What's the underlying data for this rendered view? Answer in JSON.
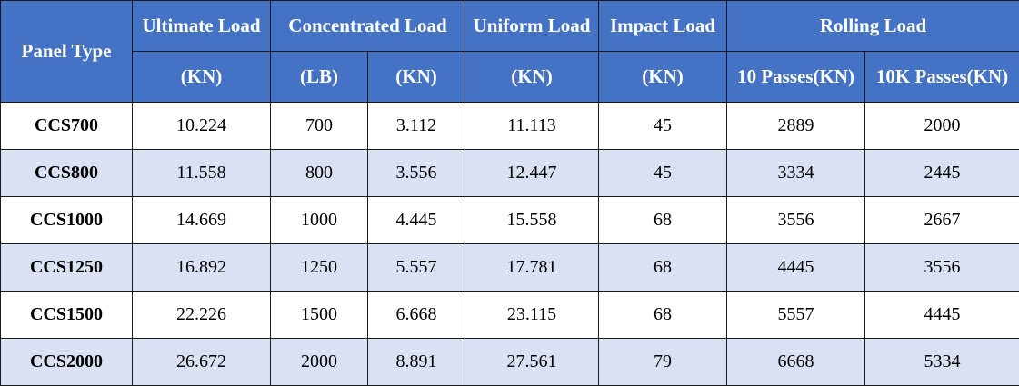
{
  "table": {
    "headers": {
      "panel_type": "Panel Type",
      "ultimate_load": "Ultimate Load",
      "concentrated_load": "Concentrated Load",
      "uniform_load": "Uniform Load",
      "impact_load": "Impact Load",
      "rolling_load": "Rolling Load"
    },
    "units": {
      "ultimate": "(KN)",
      "concentrated_lb": "(LB)",
      "concentrated_kn": "(KN)",
      "uniform": "(KN)",
      "impact": "(KN)",
      "rolling_10": "10 Passes(KN)",
      "rolling_10k": "10K Passes(KN)"
    },
    "rows": [
      {
        "type": "CCS700",
        "ultimate": "10.224",
        "conc_lb": "700",
        "conc_kn": "3.112",
        "uniform": "11.113",
        "impact": "45",
        "roll_10": "2889",
        "roll_10k": "2000"
      },
      {
        "type": "CCS800",
        "ultimate": "11.558",
        "conc_lb": "800",
        "conc_kn": "3.556",
        "uniform": "12.447",
        "impact": "45",
        "roll_10": "3334",
        "roll_10k": "2445"
      },
      {
        "type": "CCS1000",
        "ultimate": "14.669",
        "conc_lb": "1000",
        "conc_kn": "4.445",
        "uniform": "15.558",
        "impact": "68",
        "roll_10": "3556",
        "roll_10k": "2667"
      },
      {
        "type": "CCS1250",
        "ultimate": "16.892",
        "conc_lb": "1250",
        "conc_kn": "5.557",
        "uniform": "17.781",
        "impact": "68",
        "roll_10": "4445",
        "roll_10k": "3556"
      },
      {
        "type": "CCS1500",
        "ultimate": "22.226",
        "conc_lb": "1500",
        "conc_kn": "6.668",
        "uniform": "23.115",
        "impact": "68",
        "roll_10": "5557",
        "roll_10k": "4445"
      },
      {
        "type": "CCS2000",
        "ultimate": "26.672",
        "conc_lb": "2000",
        "conc_kn": "8.891",
        "uniform": "27.561",
        "impact": "79",
        "roll_10": "6668",
        "roll_10k": "5334"
      }
    ],
    "colors": {
      "header_bg": "#4472c4",
      "header_text": "#ffffff",
      "row_odd_bg": "#ffffff",
      "row_even_bg": "#d9e1f2",
      "border": "#1a1a1a"
    }
  }
}
